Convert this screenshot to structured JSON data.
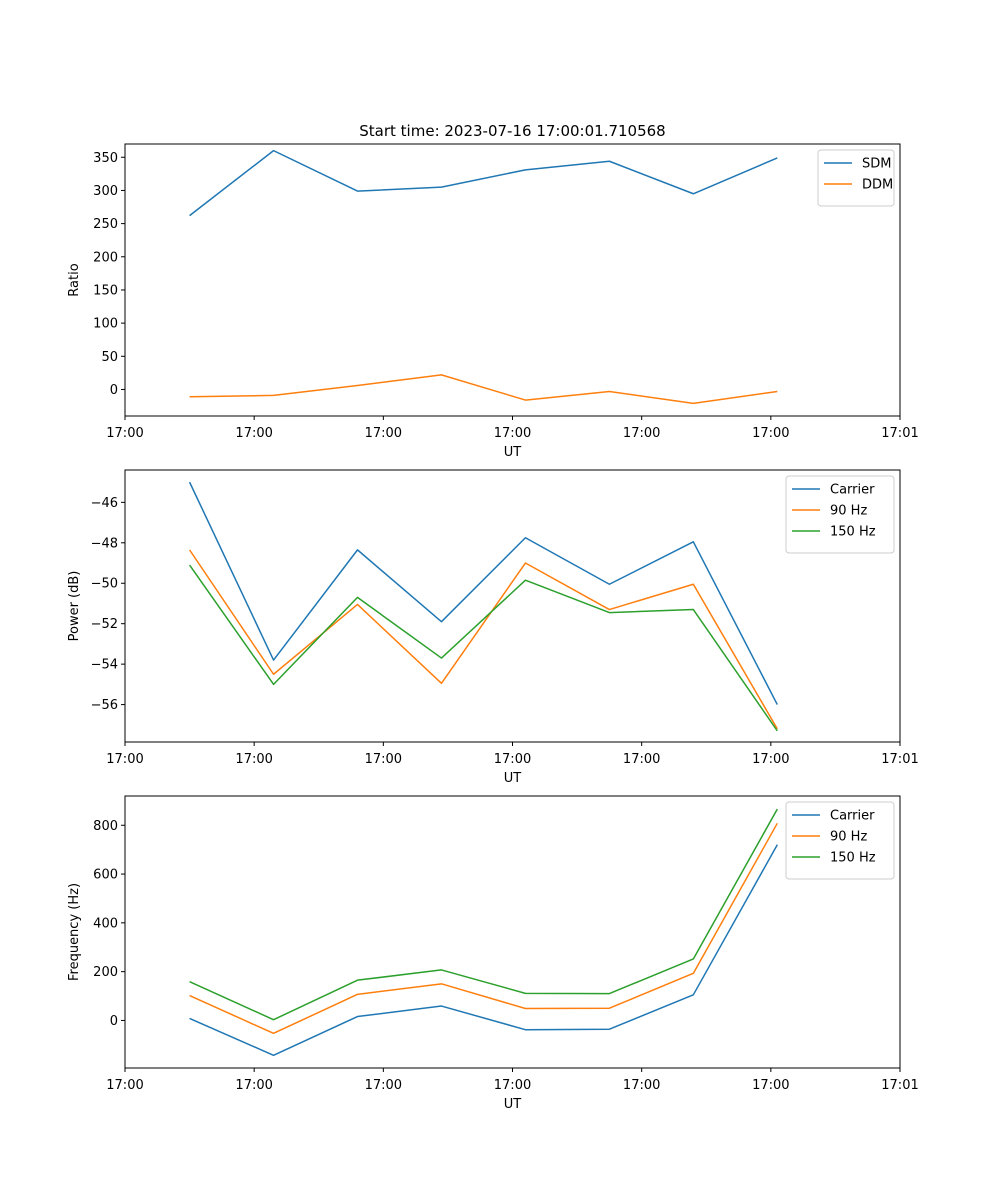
{
  "figure": {
    "title": "Start time: 2023-07-16 17:00:01.710568"
  },
  "colors": {
    "blue": "#1f77b4",
    "orange": "#ff7f0e",
    "green": "#2ca02c"
  },
  "chart_data": [
    {
      "type": "line",
      "title": "Start time: 2023-07-16 17:00:01.710568",
      "xlabel": "UT",
      "ylabel": "Ratio",
      "x": [
        0.5,
        1.15,
        1.8,
        2.45,
        3.1,
        3.75,
        4.4,
        5.05
      ],
      "xlim": [
        0,
        6
      ],
      "xticks": [
        0,
        1,
        2,
        3,
        4,
        5,
        6
      ],
      "xticklabels": [
        "17:00",
        "17:00",
        "17:00",
        "17:00",
        "17:00",
        "17:00",
        "17:01"
      ],
      "ylim": [
        -40,
        370
      ],
      "yticks": [
        0,
        50,
        100,
        150,
        200,
        250,
        300,
        350
      ],
      "yticklabels": [
        "0",
        "50",
        "100",
        "150",
        "200",
        "250",
        "300",
        "350"
      ],
      "legend": "top-right",
      "series": [
        {
          "name": "SDM",
          "color": "blue",
          "values": [
            262,
            360,
            299,
            305,
            331,
            344,
            295,
            349
          ]
        },
        {
          "name": "DDM",
          "color": "orange",
          "values": [
            -11,
            -9,
            6,
            22,
            -16,
            -3,
            -21,
            -3
          ]
        }
      ]
    },
    {
      "type": "line",
      "title": "",
      "xlabel": "UT",
      "ylabel": "Power (dB)",
      "x": [
        0.5,
        1.15,
        1.8,
        2.45,
        3.1,
        3.75,
        4.4,
        5.05
      ],
      "xlim": [
        0,
        6
      ],
      "xticks": [
        0,
        1,
        2,
        3,
        4,
        5,
        6
      ],
      "xticklabels": [
        "17:00",
        "17:00",
        "17:00",
        "17:00",
        "17:00",
        "17:00",
        "17:01"
      ],
      "ylim": [
        -57.85,
        -44.4
      ],
      "yticks": [
        -56,
        -54,
        -52,
        -50,
        -48,
        -46
      ],
      "yticklabels": [
        "−56",
        "−54",
        "−52",
        "−50",
        "−48",
        "−46"
      ],
      "legend": "top-right",
      "series": [
        {
          "name": "Carrier",
          "color": "blue",
          "values": [
            -45.0,
            -53.8,
            -48.35,
            -51.9,
            -47.75,
            -50.05,
            -47.95,
            -56.0
          ]
        },
        {
          "name": "90 Hz",
          "color": "orange",
          "values": [
            -48.35,
            -54.5,
            -51.05,
            -54.95,
            -49.0,
            -51.3,
            -50.05,
            -57.2
          ]
        },
        {
          "name": "150 Hz",
          "color": "green",
          "values": [
            -49.1,
            -55.0,
            -50.7,
            -53.7,
            -49.85,
            -51.45,
            -51.3,
            -57.3
          ]
        }
      ]
    },
    {
      "type": "line",
      "title": "",
      "xlabel": "UT",
      "ylabel": "Frequency (Hz)",
      "x": [
        0.5,
        1.15,
        1.8,
        2.45,
        3.1,
        3.75,
        4.4,
        5.05
      ],
      "xlim": [
        0,
        6
      ],
      "xticks": [
        0,
        1,
        2,
        3,
        4,
        5,
        6
      ],
      "xticklabels": [
        "17:00",
        "17:00",
        "17:00",
        "17:00",
        "17:00",
        "17:00",
        "17:01"
      ],
      "ylim": [
        -195,
        920
      ],
      "yticks": [
        0,
        200,
        400,
        600,
        800
      ],
      "yticklabels": [
        "0",
        "200",
        "400",
        "600",
        "800"
      ],
      "legend": "top-right",
      "series": [
        {
          "name": "Carrier",
          "color": "blue",
          "values": [
            8,
            -143,
            16,
            59,
            -38,
            -36,
            105,
            720
          ]
        },
        {
          "name": "90 Hz",
          "color": "orange",
          "values": [
            102,
            -53,
            107,
            150,
            49,
            50,
            193,
            808
          ]
        },
        {
          "name": "150 Hz",
          "color": "green",
          "values": [
            159,
            3,
            165,
            207,
            111,
            110,
            252,
            866
          ]
        }
      ]
    }
  ]
}
